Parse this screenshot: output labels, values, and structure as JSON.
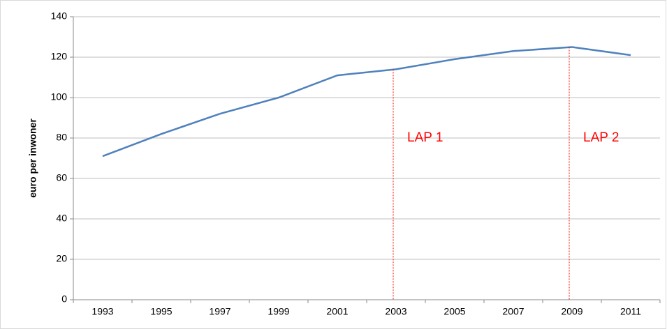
{
  "chart_data": {
    "type": "line",
    "y_label": "euro per inwoner",
    "categories": [
      "1993",
      "1995",
      "1997",
      "1999",
      "2001",
      "2003",
      "2005",
      "2007",
      "2009",
      "2011"
    ],
    "series": [
      {
        "name": "euro per inwoner",
        "color": "#4f81bd",
        "values": [
          71,
          82,
          92,
          100,
          111,
          114,
          119,
          123,
          125,
          121
        ]
      }
    ],
    "ylim": [
      0,
      140
    ],
    "yticks": [
      0,
      20,
      40,
      60,
      80,
      100,
      120,
      140
    ],
    "grid": true,
    "annotations": [
      {
        "text": "LAP 1",
        "x": "2003",
        "color": "#ff0000"
      },
      {
        "text": "LAP 2",
        "x": "2009",
        "color": "#ff0000"
      }
    ]
  }
}
